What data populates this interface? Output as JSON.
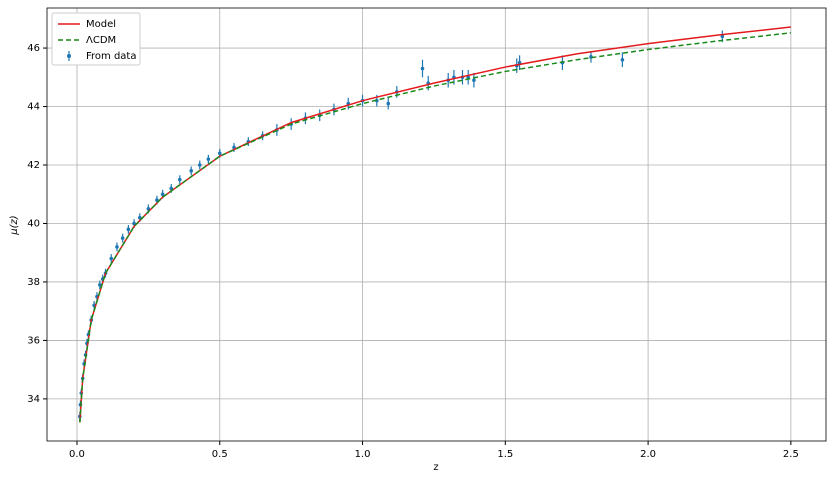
{
  "chart_data": {
    "type": "scatter",
    "x_label": "z",
    "y_label": "μ(z)",
    "xlim": [
      -0.105,
      2.623
    ],
    "ylim": [
      32.56,
      47.37
    ],
    "xticks": [
      {
        "value": 0,
        "label": "0.0"
      },
      0.5,
      {
        "value": 1,
        "label": "1.0"
      },
      1.5,
      {
        "value": 2,
        "label": "2.0"
      },
      2.5
    ],
    "yticks": [
      34,
      36,
      38,
      40,
      42,
      44,
      46
    ],
    "grid": true,
    "legend": "upper left",
    "series": [
      {
        "name": "Model",
        "kind": "line",
        "color": "#e41a1c",
        "dash": "solid",
        "x": [
          0.01,
          0.02,
          0.05,
          0.1,
          0.2,
          0.3,
          0.5,
          0.75,
          1.0,
          1.25,
          1.5,
          1.75,
          2.0,
          2.25,
          2.5
        ],
        "values": [
          33.2,
          34.7,
          36.7,
          38.3,
          39.9,
          40.9,
          42.3,
          43.45,
          44.2,
          44.8,
          45.35,
          45.8,
          46.15,
          46.45,
          46.72
        ]
      },
      {
        "name": "ΛCDM",
        "kind": "line",
        "color": "#1a8a1a",
        "dash": "dashed",
        "x": [
          0.01,
          0.02,
          0.05,
          0.1,
          0.2,
          0.3,
          0.5,
          0.75,
          1.0,
          1.25,
          1.5,
          1.75,
          2.0,
          2.25,
          2.5
        ],
        "values": [
          33.2,
          34.7,
          36.7,
          38.3,
          39.9,
          40.9,
          42.3,
          43.4,
          44.1,
          44.7,
          45.2,
          45.6,
          45.95,
          46.25,
          46.52
        ]
      },
      {
        "name": "From data",
        "kind": "errorbar",
        "color": "#1f77b4",
        "x": [
          0.01,
          0.012,
          0.015,
          0.02,
          0.025,
          0.03,
          0.035,
          0.04,
          0.05,
          0.06,
          0.07,
          0.08,
          0.09,
          0.1,
          0.12,
          0.14,
          0.16,
          0.18,
          0.2,
          0.22,
          0.25,
          0.28,
          0.3,
          0.33,
          0.36,
          0.4,
          0.43,
          0.46,
          0.5,
          0.55,
          0.6,
          0.65,
          0.7,
          0.75,
          0.8,
          0.85,
          0.9,
          0.95,
          1.0,
          1.05,
          1.09,
          1.12,
          1.21,
          1.23,
          1.3,
          1.32,
          1.35,
          1.37,
          1.39,
          1.54,
          1.55,
          1.7,
          1.8,
          1.91,
          2.26
        ],
        "values": [
          33.4,
          33.8,
          34.2,
          34.7,
          35.2,
          35.5,
          35.9,
          36.2,
          36.7,
          37.2,
          37.5,
          37.9,
          38.1,
          38.3,
          38.8,
          39.2,
          39.5,
          39.8,
          40.0,
          40.2,
          40.5,
          40.8,
          41.0,
          41.2,
          41.5,
          41.8,
          42.0,
          42.2,
          42.4,
          42.6,
          42.8,
          43.0,
          43.2,
          43.4,
          43.6,
          43.7,
          43.9,
          44.1,
          44.2,
          44.2,
          44.1,
          44.5,
          45.3,
          44.8,
          44.9,
          45.0,
          45.0,
          45.0,
          44.9,
          45.4,
          45.5,
          45.5,
          45.7,
          45.6,
          46.4
        ],
        "errors": [
          0.15,
          0.15,
          0.15,
          0.15,
          0.15,
          0.15,
          0.15,
          0.15,
          0.15,
          0.15,
          0.15,
          0.15,
          0.15,
          0.15,
          0.15,
          0.15,
          0.15,
          0.15,
          0.15,
          0.15,
          0.15,
          0.15,
          0.15,
          0.15,
          0.15,
          0.15,
          0.15,
          0.15,
          0.15,
          0.15,
          0.15,
          0.15,
          0.2,
          0.2,
          0.2,
          0.2,
          0.2,
          0.2,
          0.2,
          0.2,
          0.2,
          0.2,
          0.3,
          0.25,
          0.25,
          0.25,
          0.25,
          0.25,
          0.25,
          0.25,
          0.25,
          0.25,
          0.2,
          0.25,
          0.2
        ]
      }
    ]
  }
}
